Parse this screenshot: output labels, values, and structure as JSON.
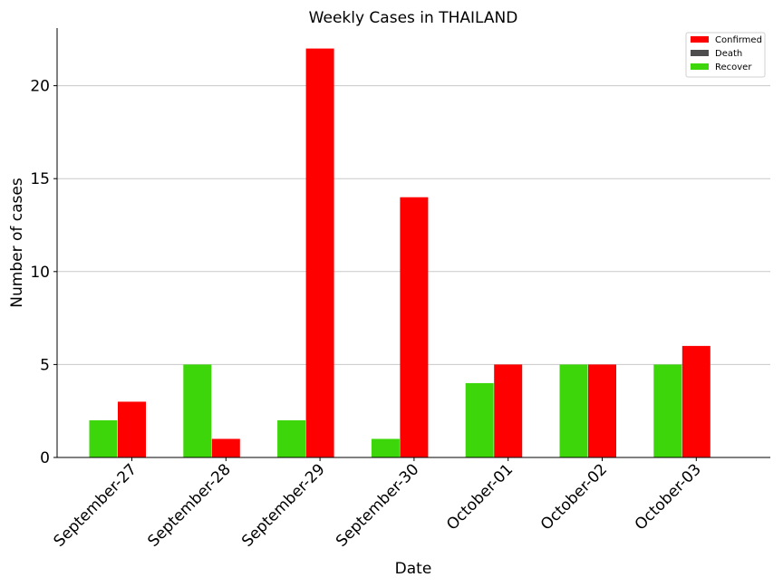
{
  "chart_data": {
    "type": "bar",
    "title": "Weekly Cases in THAILAND",
    "xlabel": "Date",
    "ylabel": "Number of cases",
    "categories": [
      "September-27",
      "September-28",
      "September-29",
      "September-30",
      "October-01",
      "October-02",
      "October-03"
    ],
    "series": [
      {
        "name": "Recover",
        "color": "#3cd60a",
        "values": [
          2,
          5,
          2,
          1,
          4,
          5,
          5
        ]
      },
      {
        "name": "Confirmed",
        "color": "#ff0000",
        "values": [
          3,
          1,
          22,
          14,
          5,
          5,
          6
        ]
      },
      {
        "name": "Death",
        "color": "#4d4d4d",
        "values": [
          0,
          0,
          0,
          0,
          0,
          0,
          0
        ]
      }
    ],
    "legend": {
      "position": "top-right",
      "entries": [
        {
          "name": "Confirmed",
          "color": "#ff0000"
        },
        {
          "name": "Death",
          "color": "#4d4d4d"
        },
        {
          "name": "Recover",
          "color": "#3cd60a"
        }
      ]
    },
    "yticks": [
      0,
      5,
      10,
      15,
      20
    ],
    "ylim": [
      0,
      23.1
    ],
    "grid": "horizontal",
    "xtick_rotation": 45
  }
}
